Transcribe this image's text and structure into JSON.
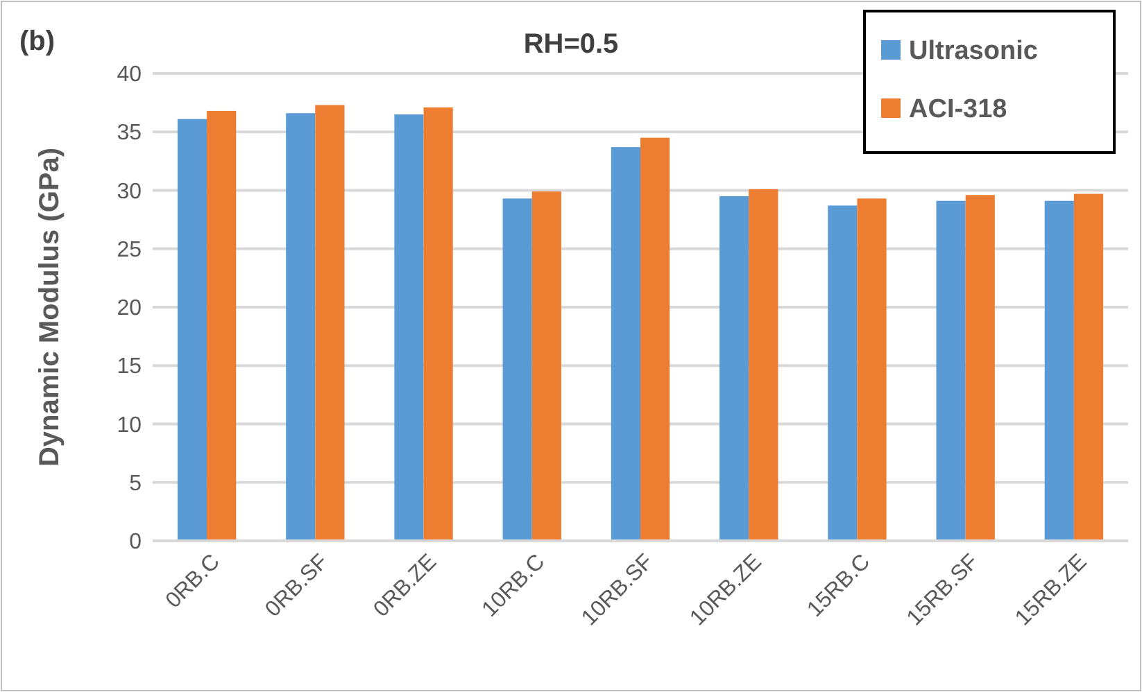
{
  "chart_data": {
    "type": "bar",
    "title": "RH=0.5",
    "ylabel": "Dynamic Modulus (GPa)",
    "annotations": [
      "(b)"
    ],
    "categories": [
      "0RB.C",
      "0RB.SF",
      "0RB.ZE",
      "10RB.C",
      "10RB.SF",
      "10RB.ZE",
      "15RB.C",
      "15RB.SF",
      "15RB.ZE"
    ],
    "series": [
      {
        "name": "Ultrasonic",
        "color": "#5b9bd5",
        "values": [
          36.1,
          36.6,
          36.5,
          29.3,
          33.7,
          29.5,
          28.7,
          29.1,
          29.1
        ]
      },
      {
        "name": "ACI-318",
        "color": "#ed7d31",
        "values": [
          36.8,
          37.3,
          37.1,
          29.9,
          34.5,
          30.1,
          29.3,
          29.6,
          29.7
        ]
      }
    ],
    "ylim": [
      0,
      40
    ],
    "yticks": [
      0,
      5,
      10,
      15,
      20,
      25,
      30,
      35,
      40
    ],
    "grid": "y",
    "legend": "top right"
  }
}
